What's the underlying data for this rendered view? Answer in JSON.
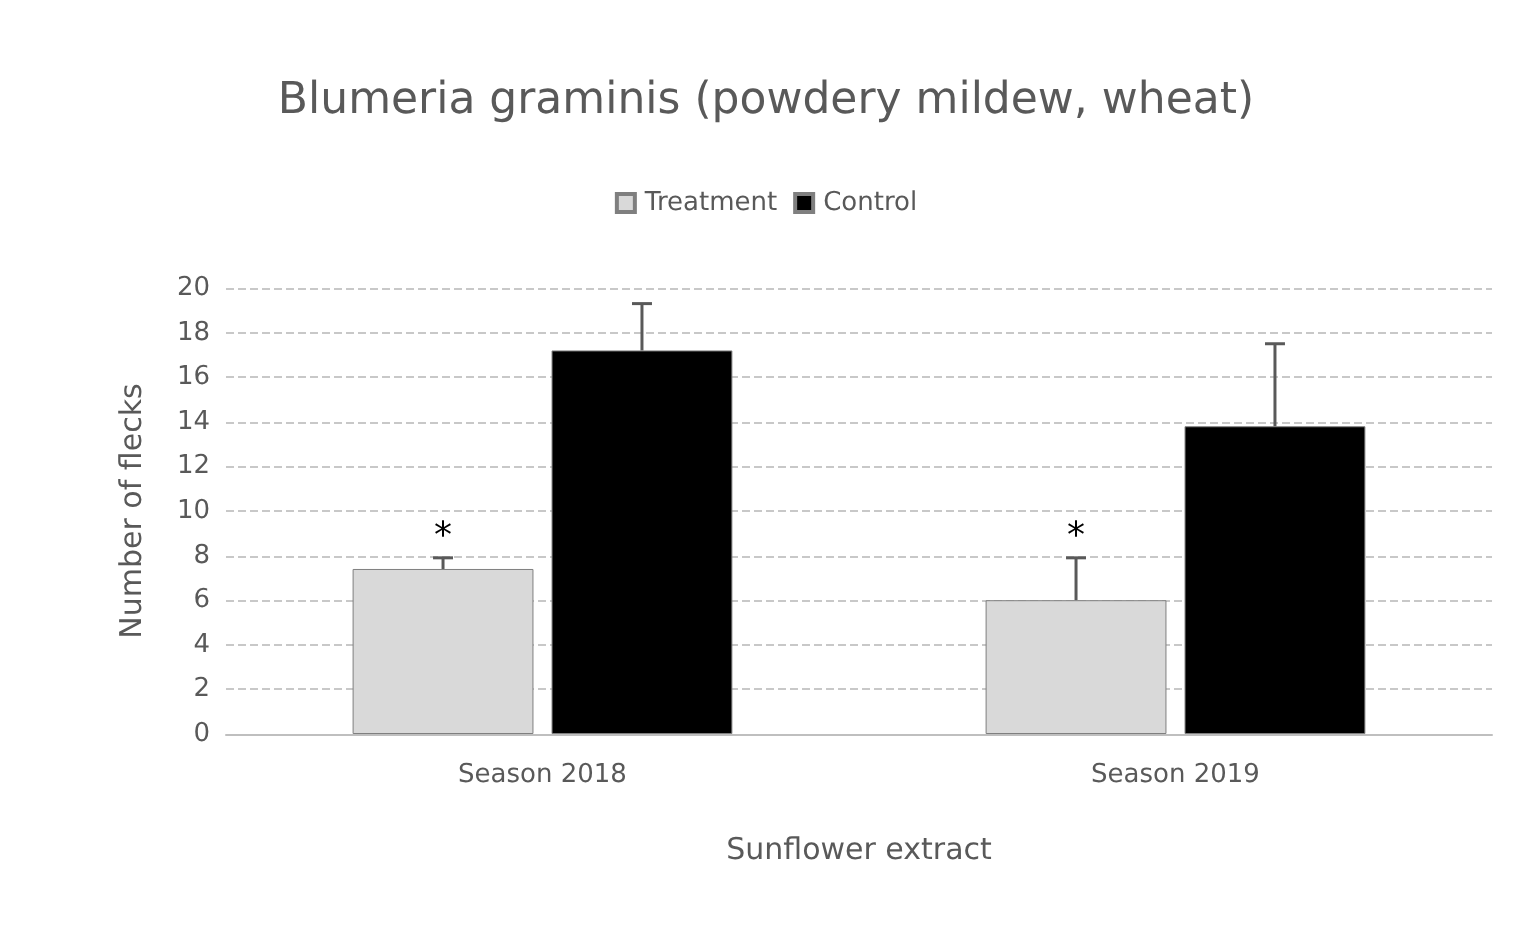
{
  "chart_data": {
    "type": "bar",
    "title": "Blumeria graminis (powdery mildew, wheat)",
    "xlabel": "Sunflower extract",
    "ylabel": "Number of flecks",
    "categories": [
      "Season 2018",
      "Season 2019"
    ],
    "series": [
      {
        "name": "Treatment",
        "color": "#d9d9d9",
        "values": [
          7.4,
          6.0
        ],
        "errors": [
          [
            7.4,
            7.9
          ],
          [
            6.0,
            7.9
          ]
        ]
      },
      {
        "name": "Control",
        "color": "#000000",
        "values": [
          17.2,
          13.8
        ],
        "errors": [
          [
            17.2,
            19.3
          ],
          [
            13.8,
            17.5
          ]
        ]
      }
    ],
    "ylim": [
      0,
      20
    ],
    "yticks": [
      0,
      2,
      4,
      6,
      8,
      10,
      12,
      14,
      16,
      18,
      20
    ],
    "grid": "y",
    "legend": "top",
    "annotations": [
      {
        "text": "*",
        "x": "Season 2018",
        "y": 7.9
      },
      {
        "text": "*",
        "x": "Season 2019",
        "y": 7.9
      }
    ]
  }
}
